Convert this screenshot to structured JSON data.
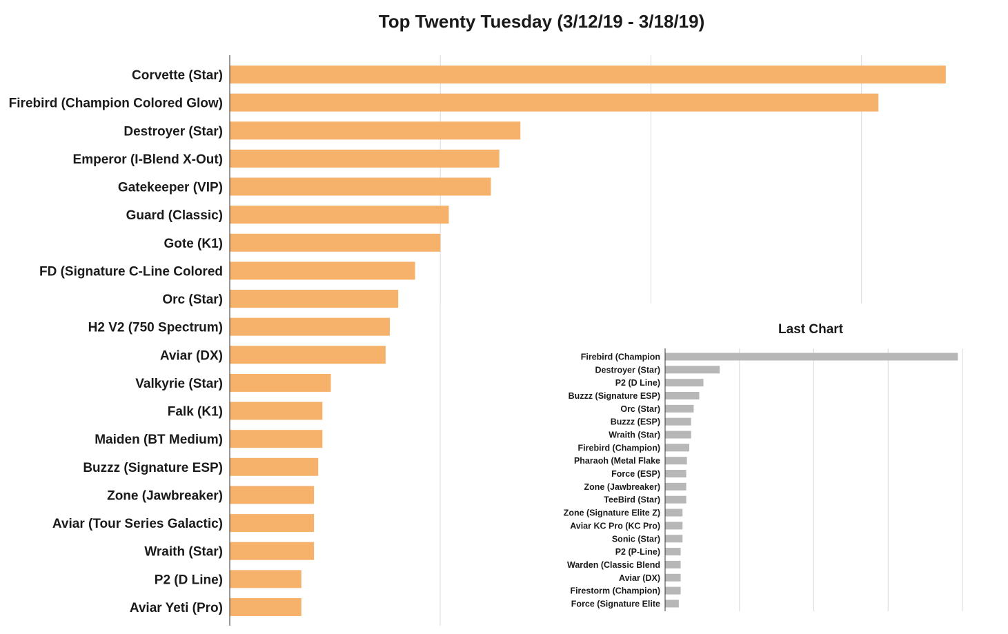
{
  "colors": {
    "main_bar": "#F6B26B",
    "inset_bar": "#B7B7B7",
    "grid": "#D9D9D9",
    "axis": "#333333"
  },
  "chart_data": [
    {
      "type": "bar",
      "orientation": "horizontal",
      "title": "Top Twenty Tuesday (3/12/19 - 3/18/19)",
      "categories": [
        "Corvette (Star)",
        "Firebird (Champion Colored Glow)",
        "Destroyer (Star)",
        "Emperor (I-Blend X-Out)",
        "Gatekeeper (VIP)",
        "Guard (Classic)",
        "Gote (K1)",
        "FD (Signature C-Line Colored",
        "Orc (Star)",
        "H2 V2 (750 Spectrum)",
        "Aviar (DX)",
        "Valkyrie (Star)",
        "Falk (K1)",
        "Maiden (BT Medium)",
        "Buzzz (Signature ESP)",
        "Zone (Jawbreaker)",
        "Aviar (Tour Series Galactic)",
        "Wraith (Star)",
        "P2 (D Line)",
        "Aviar Yeti (Pro)"
      ],
      "values": [
        340,
        308,
        138,
        128,
        124,
        104,
        100,
        88,
        80,
        76,
        74,
        48,
        44,
        44,
        42,
        40,
        40,
        40,
        34,
        34
      ],
      "xlim": [
        0,
        400
      ],
      "grid": true,
      "show_tick_labels": false
    },
    {
      "type": "bar",
      "orientation": "horizontal",
      "title": "Last Chart",
      "categories": [
        "Firebird (Champion",
        "Destroyer (Star)",
        "P2 (D Line)",
        "Buzzz (Signature ESP)",
        "Orc (Star)",
        "Buzzz (ESP)",
        "Wraith (Star)",
        "Firebird (Champion)",
        "Pharaoh (Metal Flake",
        "Force (ESP)",
        "Zone (Jawbreaker)",
        "TeeBird (Star)",
        "Zone (Signature Elite Z)",
        "Aviar KC Pro (KC Pro)",
        "Sonic (Star)",
        "P2 (P-Line)",
        "Warden (Classic Blend",
        "Aviar (DX)",
        "Firestorm (Champion)",
        "Force (Signature Elite"
      ],
      "values": [
        126,
        23.5,
        16.5,
        14.7,
        12.3,
        11.2,
        11.2,
        10.4,
        9.4,
        9.1,
        9.1,
        9.1,
        7.5,
        7.5,
        7.5,
        6.7,
        6.7,
        6.7,
        6.7,
        5.9
      ],
      "xlim": [
        0,
        128
      ],
      "grid": true,
      "show_tick_labels": false
    }
  ]
}
